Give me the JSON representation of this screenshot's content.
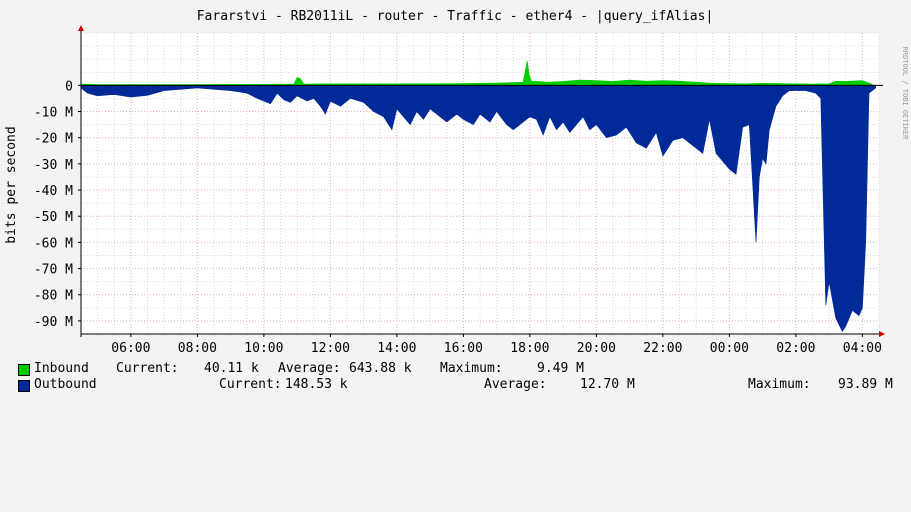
{
  "title": "Fararstvi - RB2011iL - router - Traffic - ether4 - |query_ifAlias|",
  "watermark": "RRDTOOL / TOBI OETIKER",
  "colors": {
    "inbound": "#00cc00",
    "outbound": "#002a97",
    "grid": "#dcdcdc",
    "major_grid": "#e8b4b4",
    "axis": "#000000",
    "background": "#f3f3f3",
    "plot_background": "#ffffff"
  },
  "chart_data": {
    "type": "area",
    "ylabel": "bits per second",
    "ylim": [
      -95,
      20
    ],
    "y_unit": "M bits per second",
    "y_ticks": [
      {
        "value": 0,
        "label": "0"
      },
      {
        "value": -10,
        "label": "-10 M"
      },
      {
        "value": -20,
        "label": "-20 M"
      },
      {
        "value": -30,
        "label": "-30 M"
      },
      {
        "value": -40,
        "label": "-40 M"
      },
      {
        "value": -50,
        "label": "-50 M"
      },
      {
        "value": -60,
        "label": "-60 M"
      },
      {
        "value": -70,
        "label": "-70 M"
      },
      {
        "value": -80,
        "label": "-80 M"
      },
      {
        "value": -90,
        "label": "-90 M"
      }
    ],
    "x_unit": "hours",
    "xlim": [
      4.5,
      28.5
    ],
    "x_ticks": [
      {
        "value": 6,
        "label": "06:00"
      },
      {
        "value": 8,
        "label": "08:00"
      },
      {
        "value": 10,
        "label": "10:00"
      },
      {
        "value": 12,
        "label": "12:00"
      },
      {
        "value": 14,
        "label": "14:00"
      },
      {
        "value": 16,
        "label": "16:00"
      },
      {
        "value": 18,
        "label": "18:00"
      },
      {
        "value": 20,
        "label": "20:00"
      },
      {
        "value": 22,
        "label": "22:00"
      },
      {
        "value": 24,
        "label": "00:00"
      },
      {
        "value": 26,
        "label": "02:00"
      },
      {
        "value": 28,
        "label": "04:00"
      }
    ],
    "series": [
      {
        "name": "Inbound",
        "x": [
          4.5,
          5.0,
          6.0,
          8.0,
          10.0,
          10.9,
          11.0,
          11.1,
          11.2,
          12.0,
          14.0,
          16.0,
          17.0,
          17.8,
          17.92,
          17.98,
          18.05,
          18.2,
          18.5,
          19.0,
          19.5,
          20.0,
          20.5,
          21.0,
          21.5,
          22.0,
          22.5,
          23.0,
          23.5,
          24.0,
          24.5,
          25.0,
          25.5,
          26.0,
          26.5,
          27.0,
          27.2,
          27.5,
          28.0,
          28.3
        ],
        "values": [
          0.5,
          0.3,
          0.3,
          0.3,
          0.4,
          0.5,
          3.0,
          2.5,
          0.5,
          0.6,
          0.6,
          0.7,
          0.9,
          1.2,
          9.5,
          4.0,
          1.5,
          1.5,
          1.2,
          1.5,
          2.0,
          1.8,
          1.5,
          2.0,
          1.6,
          1.8,
          1.6,
          1.2,
          0.8,
          0.7,
          0.6,
          0.8,
          0.7,
          0.6,
          0.5,
          0.6,
          1.6,
          1.5,
          1.8,
          0.4
        ]
      },
      {
        "name": "Outbound",
        "x": [
          4.5,
          4.7,
          5.0,
          5.5,
          6.0,
          6.5,
          7.0,
          7.5,
          8.0,
          8.5,
          9.0,
          9.5,
          9.8,
          10.0,
          10.2,
          10.4,
          10.6,
          10.8,
          11.0,
          11.3,
          11.5,
          11.7,
          11.85,
          12.0,
          12.3,
          12.6,
          13.0,
          13.3,
          13.6,
          13.85,
          14.0,
          14.2,
          14.4,
          14.6,
          14.8,
          15.0,
          15.3,
          15.5,
          15.8,
          16.0,
          16.3,
          16.5,
          16.8,
          17.0,
          17.3,
          17.5,
          17.8,
          18.0,
          18.2,
          18.4,
          18.6,
          18.8,
          19.0,
          19.2,
          19.4,
          19.6,
          19.8,
          20.0,
          20.3,
          20.6,
          20.9,
          21.2,
          21.5,
          21.8,
          22.0,
          22.3,
          22.6,
          22.9,
          23.2,
          23.4,
          23.6,
          23.8,
          24.0,
          24.2,
          24.4,
          24.6,
          24.7,
          24.8,
          24.9,
          25.0,
          25.1,
          25.2,
          25.4,
          25.6,
          25.8,
          26.0,
          26.3,
          26.6,
          26.75,
          26.9,
          27.0,
          27.2,
          27.4,
          27.5,
          27.7,
          27.9,
          28.0,
          28.1,
          28.2,
          28.4
        ],
        "values": [
          -1.0,
          -3.0,
          -4.0,
          -3.5,
          -4.5,
          -3.8,
          -2.0,
          -1.5,
          -1.0,
          -1.5,
          -2.0,
          -3.0,
          -5.0,
          -6.0,
          -7.0,
          -3.0,
          -5.5,
          -6.5,
          -4.0,
          -6.0,
          -5.0,
          -8.0,
          -11.0,
          -6.0,
          -8.0,
          -5.0,
          -6.5,
          -10.0,
          -12.0,
          -17.0,
          -9.0,
          -12.0,
          -15.0,
          -10.0,
          -13.0,
          -9.0,
          -12.0,
          -14.0,
          -11.0,
          -13.0,
          -15.0,
          -11.0,
          -14.0,
          -10.0,
          -15.0,
          -17.0,
          -14.0,
          -12.0,
          -13.0,
          -19.0,
          -12.0,
          -17.0,
          -14.0,
          -18.0,
          -15.0,
          -12.0,
          -17.0,
          -15.0,
          -20.0,
          -19.0,
          -16.0,
          -22.0,
          -24.0,
          -18.0,
          -27.0,
          -21.0,
          -20.0,
          -23.0,
          -26.0,
          -13.0,
          -26.0,
          -29.0,
          -32.0,
          -34.0,
          -16.0,
          -15.0,
          -37.0,
          -60.0,
          -35.0,
          -28.0,
          -30.0,
          -17.0,
          -8.0,
          -4.0,
          -2.0,
          -2.0,
          -2.0,
          -3.0,
          -5.0,
          -84.0,
          -75.0,
          -89.0,
          -94.0,
          -92.0,
          -86.0,
          -88.0,
          -85.0,
          -60.0,
          -3.0,
          -1.0
        ]
      }
    ]
  },
  "legend": [
    {
      "label": "Inbound",
      "current_label": "Current:",
      "current": "40.11 k",
      "average_label": "Average:",
      "average": "643.88 k",
      "maximum_label": "Maximum:",
      "maximum": "9.49 M"
    },
    {
      "label": "Outbound",
      "current_label": "Current:",
      "current": "148.53 k",
      "average_label": "Average:",
      "average": "12.70 M",
      "maximum_label": "Maximum:",
      "maximum": "93.89 M"
    }
  ]
}
